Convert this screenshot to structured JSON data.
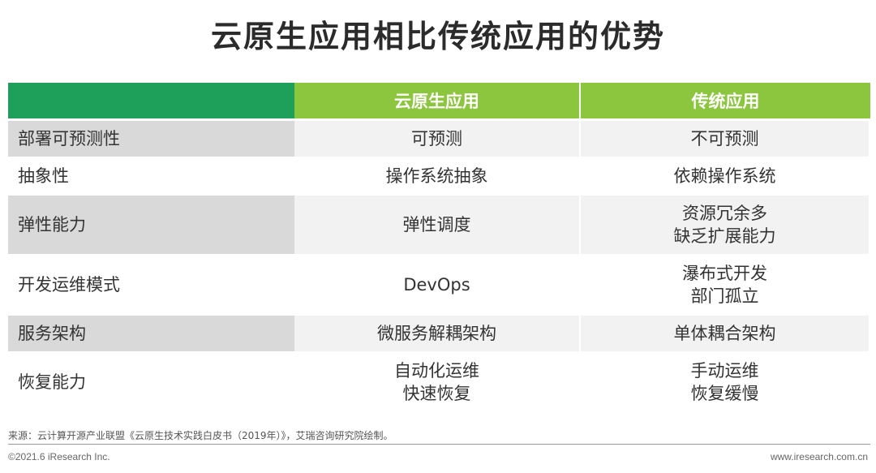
{
  "title": "云原生应用相比传统应用的优势",
  "table": {
    "headers": [
      "",
      "云原生应用",
      "传统应用"
    ],
    "rows": [
      {
        "label": "部署可预测性",
        "cloud": [
          "可预测"
        ],
        "traditional": [
          "不可预测"
        ]
      },
      {
        "label": "抽象性",
        "cloud": [
          "操作系统抽象"
        ],
        "traditional": [
          "依赖操作系统"
        ]
      },
      {
        "label": "弹性能力",
        "cloud": [
          "弹性调度"
        ],
        "traditional": [
          "资源冗余多",
          "缺乏扩展能力"
        ]
      },
      {
        "label": "开发运维模式",
        "cloud": [
          "DevOps"
        ],
        "traditional": [
          "瀑布式开发",
          "部门孤立"
        ]
      },
      {
        "label": "服务架构",
        "cloud": [
          "微服务解耦架构"
        ],
        "traditional": [
          "单体耦合架构"
        ]
      },
      {
        "label": "恢复能力",
        "cloud": [
          "自动化运维",
          "快速恢复"
        ],
        "traditional": [
          "手动运维",
          "恢复缓慢"
        ]
      }
    ]
  },
  "footer": {
    "source": "来源：云计算开源产业联盟《云原生技术实践白皮书（2019年）》，艾瑞咨询研究院绘制。",
    "copyright": "©2021.6 iResearch Inc.",
    "website": "www.iresearch.com.cn"
  },
  "colors": {
    "header_first": "#1fa05a",
    "header_green": "#8cc63f",
    "label_gray": "#d9d9d9",
    "row_alt": "#f2f2f2"
  }
}
